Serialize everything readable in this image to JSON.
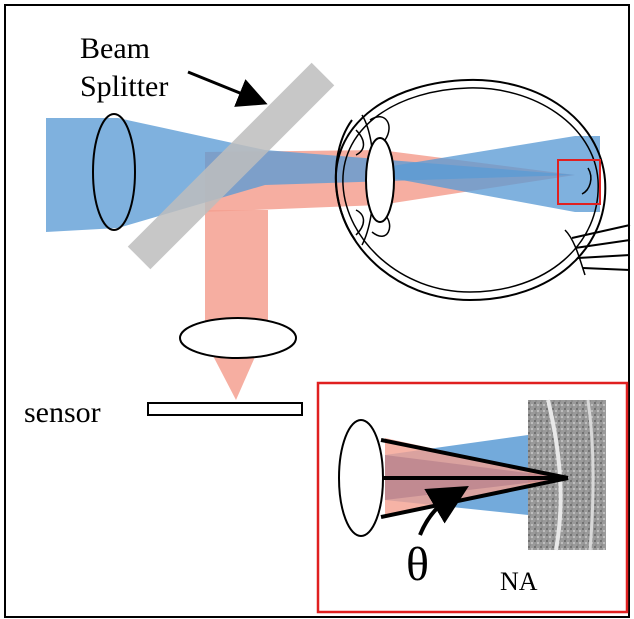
{
  "labels": {
    "beam_splitter_line1": "Beam",
    "beam_splitter_line2": "Splitter",
    "sensor": "sensor",
    "theta": "θ",
    "na": "NA"
  },
  "colors": {
    "illumination_beam": "#5b9bd5",
    "return_beam": "#f4a090",
    "beam_splitter": "#bdbdbd",
    "highlight_box": "#e02020",
    "outline": "#000000"
  }
}
